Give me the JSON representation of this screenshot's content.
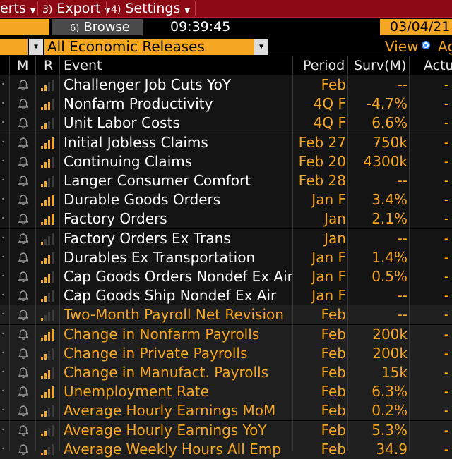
{
  "menu": {
    "items": [
      {
        "num": "",
        "label": "erts"
      },
      {
        "num": "3)",
        "label": "Export"
      },
      {
        "num": "4)",
        "label": "Settings"
      }
    ]
  },
  "toolbar": {
    "browse_num": "6)",
    "browse_label": "Browse",
    "time": "09:39:45",
    "date": "03/04/21"
  },
  "filter": {
    "value": "All Economic Releases",
    "view_label": "View",
    "view_option": "Ag"
  },
  "columns": {
    "m": "M",
    "r": "R",
    "event": "Event",
    "period": "Period",
    "surv": "Surv(M)",
    "actual": "Actual"
  },
  "colors": {
    "accent": "#f5a623",
    "menu_bg": "#8b0a14",
    "radio": "#2a8cff"
  },
  "rows": [
    {
      "event": "Challenger Job Cuts YoY",
      "period": "Feb",
      "surv": "--",
      "actual": "-",
      "relevance": 2,
      "highlight": false
    },
    {
      "event": "Nonfarm Productivity",
      "period": "4Q F",
      "surv": "-4.7%",
      "actual": "-",
      "relevance": 3,
      "highlight": false
    },
    {
      "event": "Unit Labor Costs",
      "period": "4Q F",
      "surv": "6.6%",
      "actual": "-",
      "relevance": 2,
      "highlight": false
    },
    {
      "event": "Initial Jobless Claims",
      "period": "Feb 27",
      "surv": "750k",
      "actual": "-",
      "relevance": 4,
      "highlight": false
    },
    {
      "event": "Continuing Claims",
      "period": "Feb 20",
      "surv": "4300k",
      "actual": "-",
      "relevance": 3,
      "highlight": false
    },
    {
      "event": "Langer Consumer Comfort",
      "period": "Feb 28",
      "surv": "--",
      "actual": "-",
      "relevance": 2,
      "highlight": false
    },
    {
      "event": "Durable Goods Orders",
      "period": "Jan F",
      "surv": "3.4%",
      "actual": "-",
      "relevance": 4,
      "highlight": false
    },
    {
      "event": "Factory Orders",
      "period": "Jan",
      "surv": "2.1%",
      "actual": "-",
      "relevance": 4,
      "highlight": false
    },
    {
      "event": "Factory Orders Ex Trans",
      "period": "Jan",
      "surv": "--",
      "actual": "-",
      "relevance": 1,
      "highlight": false
    },
    {
      "event": "Durables Ex Transportation",
      "period": "Jan F",
      "surv": "1.4%",
      "actual": "-",
      "relevance": 3,
      "highlight": false
    },
    {
      "event": "Cap Goods Orders Nondef Ex Air",
      "period": "Jan F",
      "surv": "0.5%",
      "actual": "-",
      "relevance": 3,
      "highlight": false
    },
    {
      "event": "Cap Goods Ship Nondef Ex Air",
      "period": "Jan F",
      "surv": "--",
      "actual": "-",
      "relevance": 2,
      "highlight": false
    },
    {
      "event": "Two-Month Payroll Net Revision",
      "period": "Feb",
      "surv": "--",
      "actual": "-",
      "relevance": 1,
      "highlight": true
    },
    {
      "event": "Change in Nonfarm Payrolls",
      "period": "Feb",
      "surv": "200k",
      "actual": "-",
      "relevance": 4,
      "highlight": true
    },
    {
      "event": "Change in Private Payrolls",
      "period": "Feb",
      "surv": "200k",
      "actual": "-",
      "relevance": 2,
      "highlight": true
    },
    {
      "event": "Change in Manufact. Payrolls",
      "period": "Feb",
      "surv": "15k",
      "actual": "-",
      "relevance": 3,
      "highlight": true
    },
    {
      "event": "Unemployment Rate",
      "period": "Feb",
      "surv": "6.3%",
      "actual": "-",
      "relevance": 4,
      "highlight": true
    },
    {
      "event": "Average Hourly Earnings MoM",
      "period": "Feb",
      "surv": "0.2%",
      "actual": "-",
      "relevance": 2,
      "highlight": true
    },
    {
      "event": "Average Hourly Earnings YoY",
      "period": "Feb",
      "surv": "5.3%",
      "actual": "-",
      "relevance": 2,
      "highlight": true
    },
    {
      "event": "Average Weekly Hours All Emp",
      "period": "Feb",
      "surv": "34.9",
      "actual": "-",
      "relevance": 2,
      "highlight": true
    }
  ]
}
